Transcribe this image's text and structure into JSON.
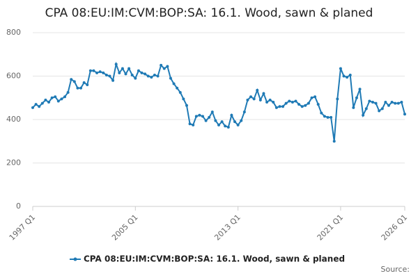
{
  "chart_data": {
    "type": "line",
    "title": "CPA 08:EU:IM:CVM:BOP:SA: 16.1. Wood, sawn & planed",
    "categories": [
      "1997 Q1",
      null,
      null,
      null,
      null,
      null,
      null,
      null,
      null,
      null,
      null,
      null,
      null,
      null,
      null,
      null,
      null,
      null,
      null,
      null,
      null,
      null,
      null,
      null,
      null,
      null,
      null,
      null,
      null,
      null,
      null,
      null,
      "2005 Q1",
      null,
      null,
      null,
      null,
      null,
      null,
      null,
      null,
      null,
      null,
      null,
      null,
      null,
      null,
      null,
      null,
      null,
      null,
      null,
      null,
      null,
      null,
      null,
      null,
      null,
      null,
      null,
      null,
      null,
      null,
      null,
      "2013 Q1",
      null,
      null,
      null,
      null,
      null,
      null,
      null,
      null,
      null,
      null,
      null,
      null,
      null,
      null,
      null,
      null,
      null,
      null,
      null,
      null,
      null,
      null,
      null,
      null,
      null,
      null,
      null,
      null,
      null,
      null,
      null,
      "2021 Q1",
      null,
      null,
      null,
      null,
      null,
      null,
      null,
      null,
      null,
      null,
      null,
      null,
      null,
      null,
      null,
      null,
      null,
      null,
      null,
      "2026 Q1"
    ],
    "series": [
      {
        "name": "CPA 08:EU:IM:CVM:BOP:SA: 16.1. Wood, sawn & planed",
        "color": "#1f7ab5",
        "values": [
          455,
          470,
          460,
          475,
          490,
          480,
          500,
          505,
          485,
          495,
          505,
          525,
          585,
          575,
          545,
          545,
          570,
          560,
          625,
          625,
          615,
          620,
          615,
          605,
          600,
          580,
          655,
          615,
          635,
          610,
          635,
          605,
          590,
          625,
          615,
          610,
          600,
          595,
          605,
          600,
          650,
          635,
          645,
          590,
          565,
          545,
          525,
          495,
          465,
          380,
          375,
          415,
          420,
          415,
          395,
          410,
          435,
          395,
          375,
          390,
          370,
          365,
          420,
          390,
          375,
          395,
          435,
          490,
          505,
          495,
          535,
          490,
          520,
          480,
          490,
          480,
          455,
          460,
          460,
          475,
          485,
          480,
          485,
          470,
          460,
          465,
          475,
          500,
          505,
          470,
          430,
          415,
          410,
          410,
          300,
          495,
          635,
          600,
          595,
          605,
          455,
          500,
          540,
          420,
          450,
          485,
          480,
          475,
          440,
          450,
          480,
          465,
          480,
          475,
          475,
          480,
          425
        ]
      }
    ],
    "ylim": [
      0,
      800
    ],
    "yticks": [
      0,
      200,
      400,
      600,
      800
    ],
    "grid": true,
    "source": "Source:"
  }
}
